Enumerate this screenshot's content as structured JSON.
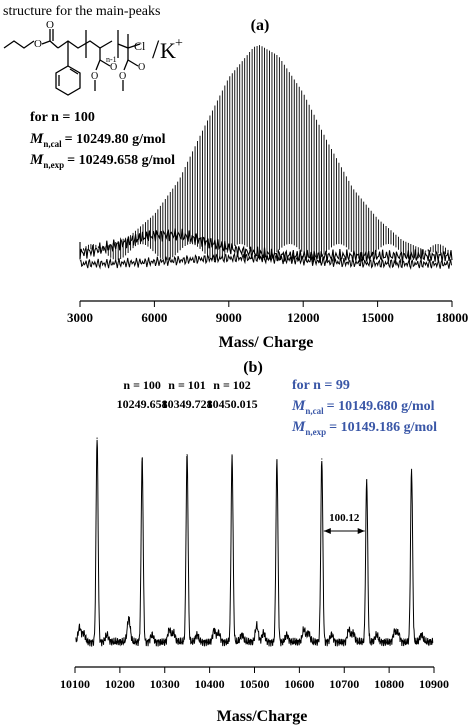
{
  "structure": {
    "caption": "structure for the main-peaks",
    "repeat_label": "n-1",
    "chlorine": "Cl",
    "counterion": "K",
    "charge": "+"
  },
  "annot_a": {
    "n_line": "for n = 100",
    "mcal_label": "n,cal",
    "mcal_value": "= 10249.80 g/mol",
    "mexp_label": "n,exp",
    "mexp_value": "= 10249.658 g/mol"
  },
  "annot_b": {
    "n_line": "for n = 99",
    "mcal_label": "n,cal",
    "mcal_value": "= 10149.680 g/mol",
    "mexp_label": "n,exp",
    "mexp_value": "= 10149.186 g/mol",
    "color": "#3a57a7",
    "peak_labels": [
      {
        "n": "n = 100",
        "mass": "10249.658",
        "x": 10249.658
      },
      {
        "n": "n = 101",
        "mass": "10349.728",
        "x": 10349.728
      },
      {
        "n": "n = 102",
        "mass": "10450.015",
        "x": 10450.015
      }
    ],
    "spacing_label": "100.12",
    "spacing_range": [
      10650,
      10750
    ]
  },
  "chart_data": [
    {
      "type": "line",
      "panel_label": "(a)",
      "xlabel": "Mass/ Charge",
      "ylabel": "",
      "xlim": [
        3000,
        18000
      ],
      "xticks": [
        3000,
        6000,
        9000,
        12000,
        15000,
        18000
      ],
      "xtick_labels": [
        "3000",
        "6000",
        "9000",
        "12000",
        "15000",
        "18000"
      ],
      "y_axis_shown": false,
      "grid": false,
      "envelope": {
        "description_unit": "relative intensity",
        "peak_center_x": 10250,
        "max_relative_intensity": 1.0,
        "baseline_relative_intensity": 0.08,
        "series": [
          {
            "x": 3000,
            "y": 0.05
          },
          {
            "x": 4000,
            "y": 0.07
          },
          {
            "x": 5000,
            "y": 0.12
          },
          {
            "x": 6000,
            "y": 0.22
          },
          {
            "x": 7000,
            "y": 0.38
          },
          {
            "x": 8000,
            "y": 0.62
          },
          {
            "x": 9000,
            "y": 0.85
          },
          {
            "x": 10000,
            "y": 0.99
          },
          {
            "x": 10250,
            "y": 1.0
          },
          {
            "x": 11000,
            "y": 0.95
          },
          {
            "x": 12000,
            "y": 0.78
          },
          {
            "x": 13000,
            "y": 0.55
          },
          {
            "x": 14000,
            "y": 0.34
          },
          {
            "x": 15000,
            "y": 0.2
          },
          {
            "x": 16000,
            "y": 0.1
          },
          {
            "x": 17000,
            "y": 0.05
          },
          {
            "x": 18000,
            "y": 0.03
          }
        ]
      }
    },
    {
      "type": "line",
      "panel_label": "(b)",
      "xlabel": "Mass/Charge",
      "ylabel": "",
      "xlim": [
        10100,
        10900
      ],
      "xticks": [
        10100,
        10200,
        10300,
        10400,
        10500,
        10600,
        10700,
        10800,
        10900
      ],
      "xtick_labels": [
        "10100",
        "10200",
        "10300",
        "10400",
        "10500",
        "10600",
        "10700",
        "10800",
        "10900"
      ],
      "y_axis_shown": false,
      "grid": false,
      "main_peaks": [
        {
          "x": 10149.186,
          "y": 0.98
        },
        {
          "x": 10249.658,
          "y": 0.88
        },
        {
          "x": 10349.728,
          "y": 0.9
        },
        {
          "x": 10450.015,
          "y": 0.89
        },
        {
          "x": 10550.0,
          "y": 0.87
        },
        {
          "x": 10650.0,
          "y": 0.88
        },
        {
          "x": 10750.0,
          "y": 0.78
        },
        {
          "x": 10850.0,
          "y": 0.83
        }
      ],
      "minor_peaks": [
        {
          "x": 10110,
          "y": 0.07
        },
        {
          "x": 10220,
          "y": 0.07
        },
        {
          "x": 10310,
          "y": 0.06
        },
        {
          "x": 10410,
          "y": 0.06
        },
        {
          "x": 10505,
          "y": 0.08
        },
        {
          "x": 10610,
          "y": 0.06
        },
        {
          "x": 10710,
          "y": 0.06
        },
        {
          "x": 10812,
          "y": 0.05
        }
      ]
    }
  ]
}
